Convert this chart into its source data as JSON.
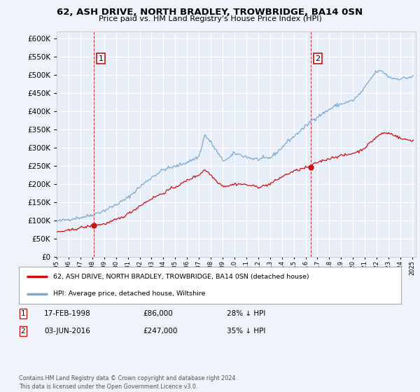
{
  "title": "62, ASH DRIVE, NORTH BRADLEY, TROWBRIDGE, BA14 0SN",
  "subtitle": "Price paid vs. HM Land Registry's House Price Index (HPI)",
  "background_color": "#f0f4fa",
  "plot_bg_color": "#e8eef8",
  "legend_line1": "62, ASH DRIVE, NORTH BRADLEY, TROWBRIDGE, BA14 0SN (detached house)",
  "legend_line2": "HPI: Average price, detached house, Wiltshire",
  "footer": "Contains HM Land Registry data © Crown copyright and database right 2024.\nThis data is licensed under the Open Government Licence v3.0.",
  "table": [
    {
      "num": "1",
      "date": "17-FEB-1998",
      "price": "£86,000",
      "pct": "28% ↓ HPI"
    },
    {
      "num": "2",
      "date": "03-JUN-2016",
      "price": "£247,000",
      "pct": "35% ↓ HPI"
    }
  ],
  "event1_year": 1998.12,
  "event2_year": 2016.42,
  "event1_price": 86000,
  "event2_price": 247000,
  "ylim": [
    0,
    620000
  ],
  "xlim_start": 1995.0,
  "xlim_end": 2025.3,
  "hpi_color": "#7aaad0",
  "price_color": "#cc1111",
  "grid_color": "#ffffff",
  "spine_color": "#cccccc"
}
